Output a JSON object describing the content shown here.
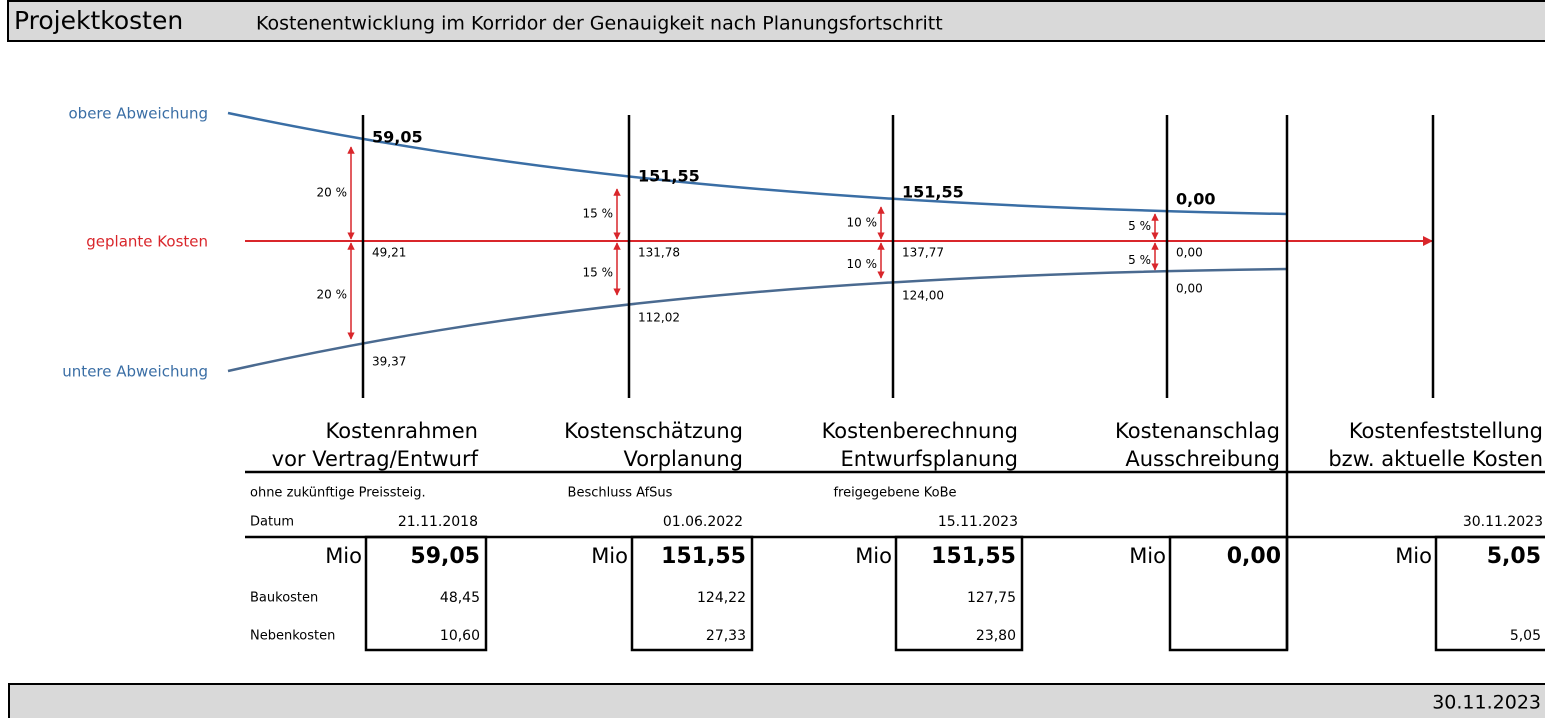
{
  "header": {
    "title": "Projektkosten",
    "subtitle": "Kostenentwicklung im Korridor der Genauigkeit nach Planungsfortschritt"
  },
  "legend": {
    "upper": "obere Abweichung",
    "planned": "geplante Kosten",
    "lower": "untere Abweichung"
  },
  "row_labels": {
    "date": "Datum",
    "unit": "Mio",
    "construction": "Baukosten",
    "additional": "Nebenkosten"
  },
  "phases": [
    {
      "title": "Kostenrahmen",
      "subtitle": "vor Vertrag/Entwurf",
      "upper": "59,05",
      "planned": "49,21",
      "lower": "39,37",
      "pct_up": "20 %",
      "pct_down": "20 %",
      "note": "ohne zukünftige Preissteig.",
      "date": "21.11.2018",
      "unit": "Mio",
      "total": "59,05",
      "construction": "48,45",
      "additional": "10,60"
    },
    {
      "title": "Kostenschätzung",
      "subtitle": "Vorplanung",
      "upper": "151,55",
      "planned": "131,78",
      "lower": "112,02",
      "pct_up": "15 %",
      "pct_down": "15 %",
      "note": "Beschluss AfSus",
      "date": "01.06.2022",
      "unit": "Mio",
      "total": "151,55",
      "construction": "124,22",
      "additional": "27,33"
    },
    {
      "title": "Kostenberechnung",
      "subtitle": "Entwurfsplanung",
      "upper": "151,55",
      "planned": "137,77",
      "lower": "124,00",
      "pct_up": "10 %",
      "pct_down": "10 %",
      "note": "freigegebene KoBe",
      "date": "15.11.2023",
      "unit": "Mio",
      "total": "151,55",
      "construction": "127,75",
      "additional": "23,80"
    },
    {
      "title": "Kostenanschlag",
      "subtitle": "Ausschreibung",
      "upper": "0,00",
      "planned": "0,00",
      "lower": "0,00",
      "pct_up": "5 %",
      "pct_down": "5 %",
      "unit": "Mio",
      "total": "0,00"
    },
    {
      "title": "Kostenfeststellung",
      "subtitle": "bzw. aktuelle Kosten",
      "date": "30.11.2023",
      "unit": "Mio",
      "total": "5,05",
      "additional": "5,05"
    }
  ],
  "footer": {
    "date": "30.11.2023"
  }
}
